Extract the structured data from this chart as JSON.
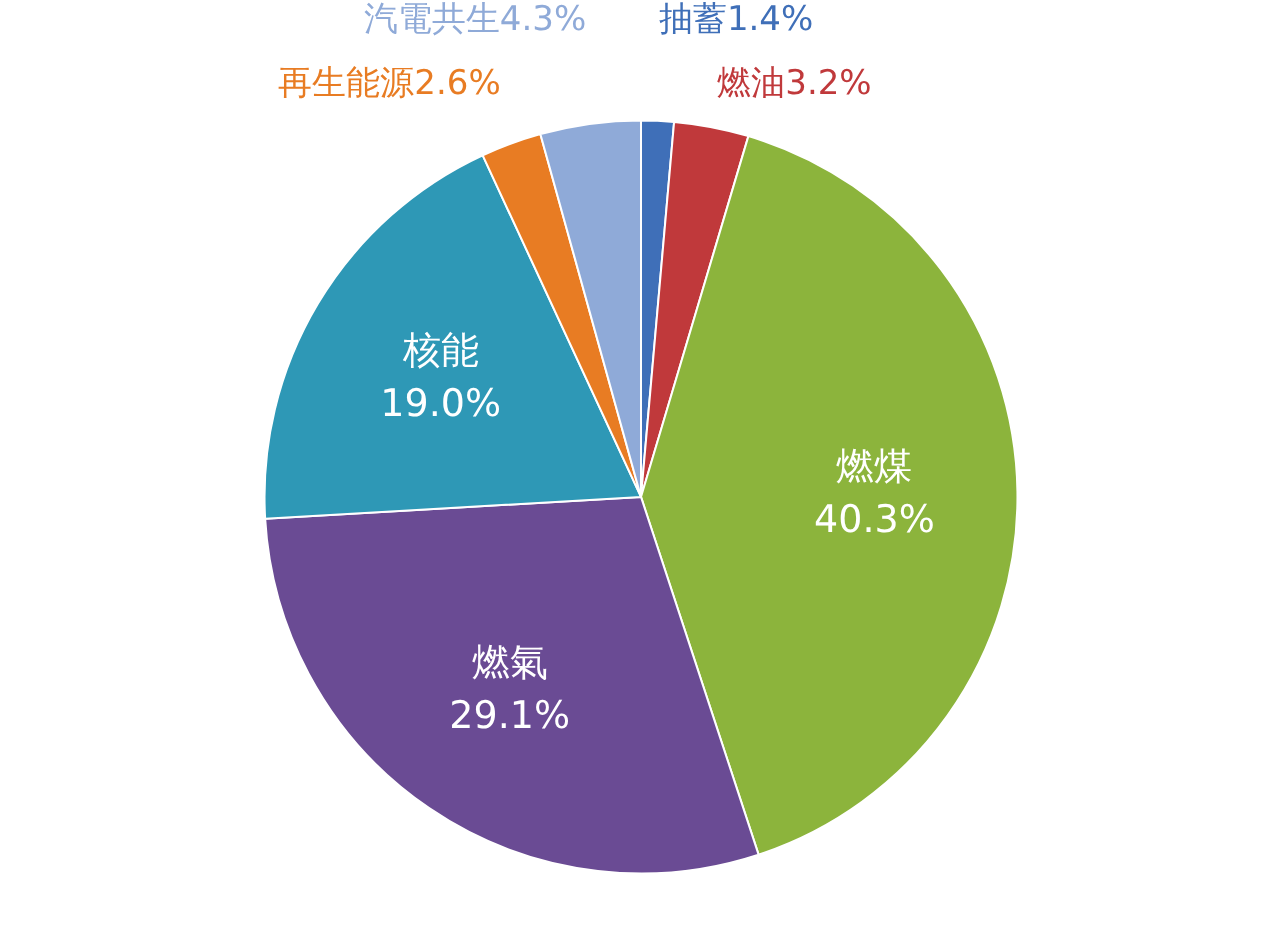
{
  "chart_data": {
    "type": "pie",
    "categories": [
      "抽蓄",
      "燃油",
      "燃煤",
      "燃氣",
      "核能",
      "再生能源",
      "汽電共生"
    ],
    "values": [
      1.4,
      3.2,
      40.3,
      29.1,
      19.0,
      2.6,
      4.3
    ],
    "value_labels": [
      "1.4%",
      "3.2%",
      "40.3%",
      "29.1%",
      "19.0%",
      "2.6%",
      "4.3%"
    ],
    "colors": [
      "#3f6fb8",
      "#c0393b",
      "#8cb43c",
      "#6a4b94",
      "#2e98b6",
      "#e87c23",
      "#8faad8"
    ]
  }
}
